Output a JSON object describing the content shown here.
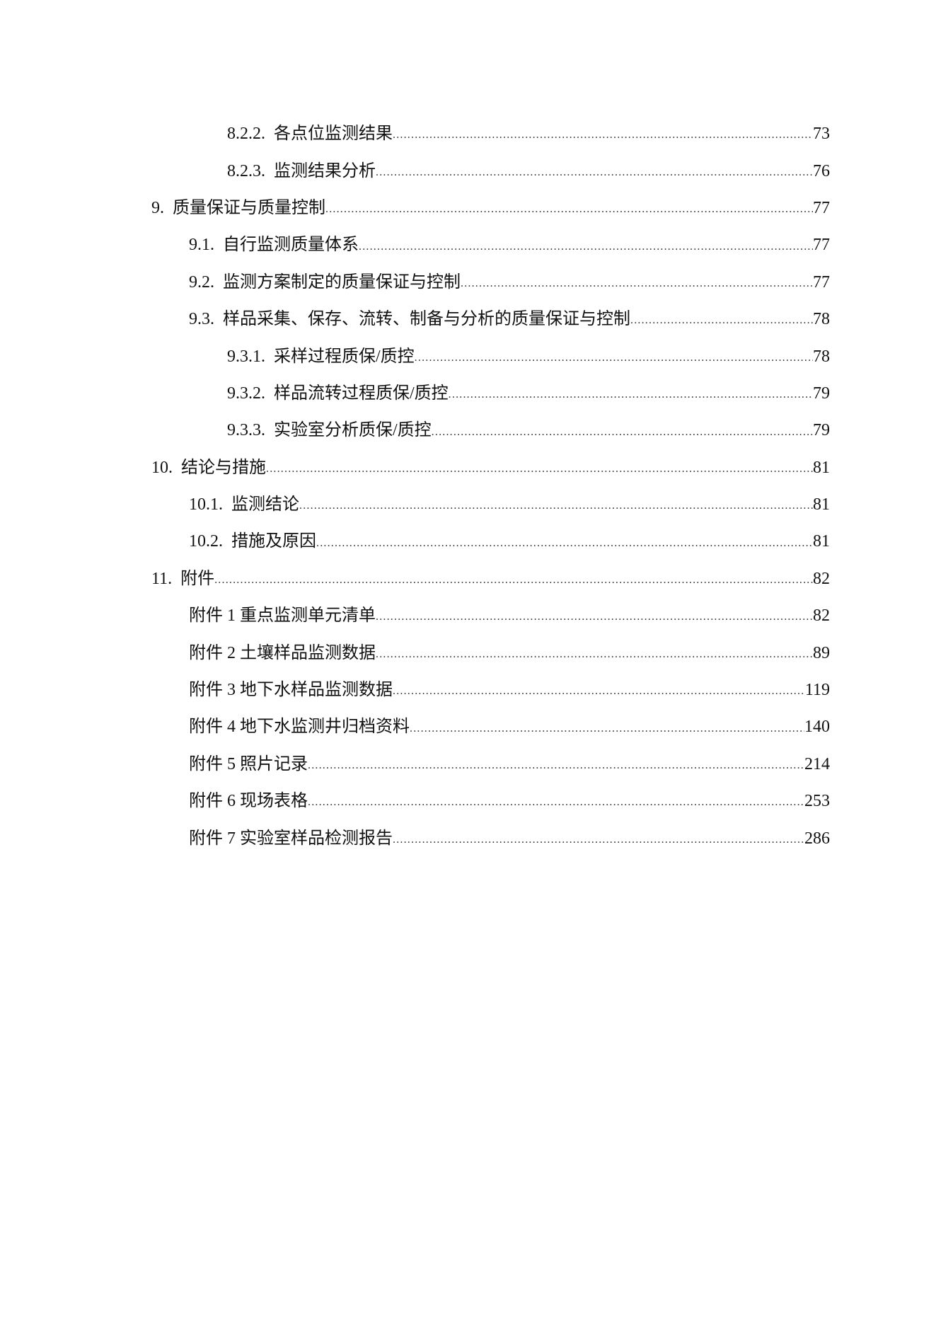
{
  "toc": [
    {
      "level": 3,
      "num": "8.2.2.",
      "title": "各点位监测结果",
      "page": "73"
    },
    {
      "level": 3,
      "num": "8.2.3.",
      "title": "监测结果分析",
      "page": "76"
    },
    {
      "level": 1,
      "num": "9.",
      "title": "质量保证与质量控制",
      "page": "77"
    },
    {
      "level": 2,
      "num": "9.1.",
      "title": "自行监测质量体系",
      "page": "77"
    },
    {
      "level": 2,
      "num": "9.2.",
      "title": "监测方案制定的质量保证与控制",
      "page": "77"
    },
    {
      "level": 2,
      "num": "9.3.",
      "title": "样品采集、保存、流转、制备与分析的质量保证与控制",
      "page": "78"
    },
    {
      "level": 3,
      "num": "9.3.1.",
      "title": "采样过程质保/质控",
      "page": "78"
    },
    {
      "level": 3,
      "num": "9.3.2.",
      "title": "样品流转过程质保/质控",
      "page": "79"
    },
    {
      "level": 3,
      "num": "9.3.3.",
      "title": "实验室分析质保/质控",
      "page": "79"
    },
    {
      "level": 1,
      "num": "10.",
      "title": "结论与措施",
      "page": "81"
    },
    {
      "level": 2,
      "num": "10.1.",
      "title": "监测结论",
      "page": "81"
    },
    {
      "level": 2,
      "num": "10.2.",
      "title": "措施及原因",
      "page": "81"
    },
    {
      "level": 1,
      "num": "11.",
      "title": "附件",
      "page": "82"
    },
    {
      "level": 2,
      "num": "附件 1",
      "title": "重点监测单元清单",
      "page": "82"
    },
    {
      "level": 2,
      "num": "附件 2",
      "title": "土壤样品监测数据",
      "page": "89"
    },
    {
      "level": 2,
      "num": "附件 3",
      "title": "地下水样品监测数据",
      "page": "119"
    },
    {
      "level": 2,
      "num": "附件 4",
      "title": "地下水监测井归档资料",
      "page": "140"
    },
    {
      "level": 2,
      "num": "附件 5",
      "title": "照片记录",
      "page": "214"
    },
    {
      "level": 2,
      "num": "附件 6",
      "title": "现场表格",
      "page": "253"
    },
    {
      "level": 2,
      "num": "附件 7",
      "title": "实验室样品检测报告",
      "page": "286"
    }
  ]
}
